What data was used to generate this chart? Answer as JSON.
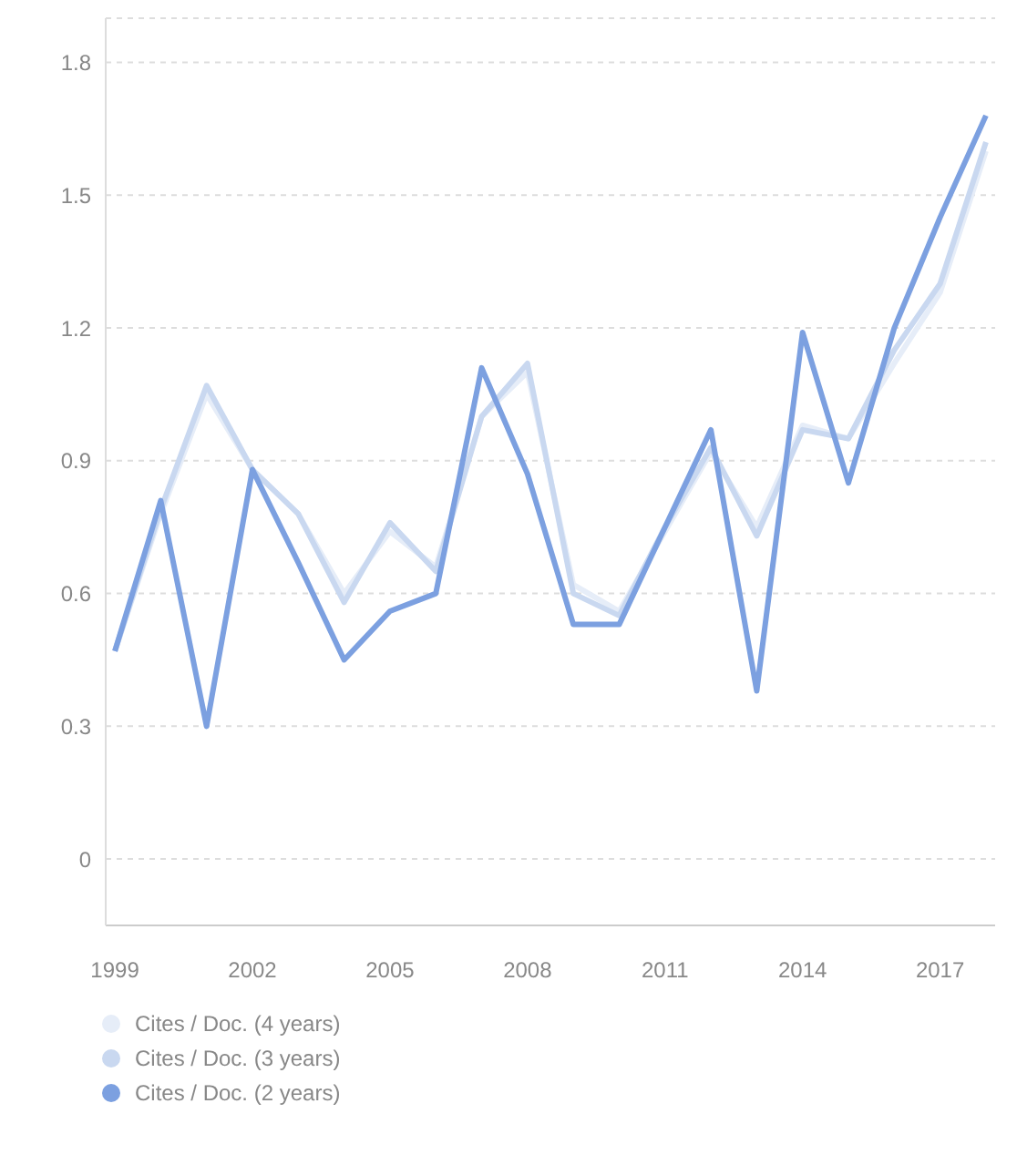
{
  "chart_data": {
    "type": "line",
    "x": [
      1999,
      2000,
      2001,
      2002,
      2003,
      2004,
      2005,
      2006,
      2007,
      2008,
      2009,
      2010,
      2011,
      2012,
      2013,
      2014,
      2015,
      2016,
      2017,
      2018
    ],
    "series": [
      {
        "name": "Cites / Doc. (4 years)",
        "color": "#e6edf8",
        "values": [
          0.47,
          0.78,
          1.05,
          0.88,
          0.78,
          0.6,
          0.74,
          0.66,
          1.0,
          1.1,
          0.62,
          0.56,
          0.74,
          0.92,
          0.75,
          0.98,
          0.95,
          1.12,
          1.28,
          1.6
        ]
      },
      {
        "name": "Cites / Doc. (3 years)",
        "color": "#c9d8f0",
        "values": [
          0.47,
          0.79,
          1.07,
          0.88,
          0.78,
          0.58,
          0.76,
          0.65,
          1.0,
          1.12,
          0.6,
          0.55,
          0.75,
          0.93,
          0.73,
          0.97,
          0.95,
          1.15,
          1.3,
          1.62
        ]
      },
      {
        "name": "Cites / Doc. (2 years)",
        "color": "#7ca0e0",
        "values": [
          0.47,
          0.81,
          0.3,
          0.88,
          0.67,
          0.45,
          0.56,
          0.6,
          1.11,
          0.87,
          0.53,
          0.53,
          0.75,
          0.97,
          0.38,
          1.19,
          0.85,
          1.2,
          1.45,
          1.68
        ]
      }
    ],
    "xlim": [
      1998.8,
      2018.2
    ],
    "xticks": [
      1999,
      2002,
      2005,
      2008,
      2011,
      2014,
      2017
    ],
    "ylim": [
      -0.15,
      1.9
    ],
    "yticks": [
      0,
      0.3,
      0.6,
      0.9,
      1.2,
      1.5,
      1.8
    ],
    "grid": "y",
    "legend": "bottom left",
    "marker": "none",
    "line_style": "solid"
  }
}
